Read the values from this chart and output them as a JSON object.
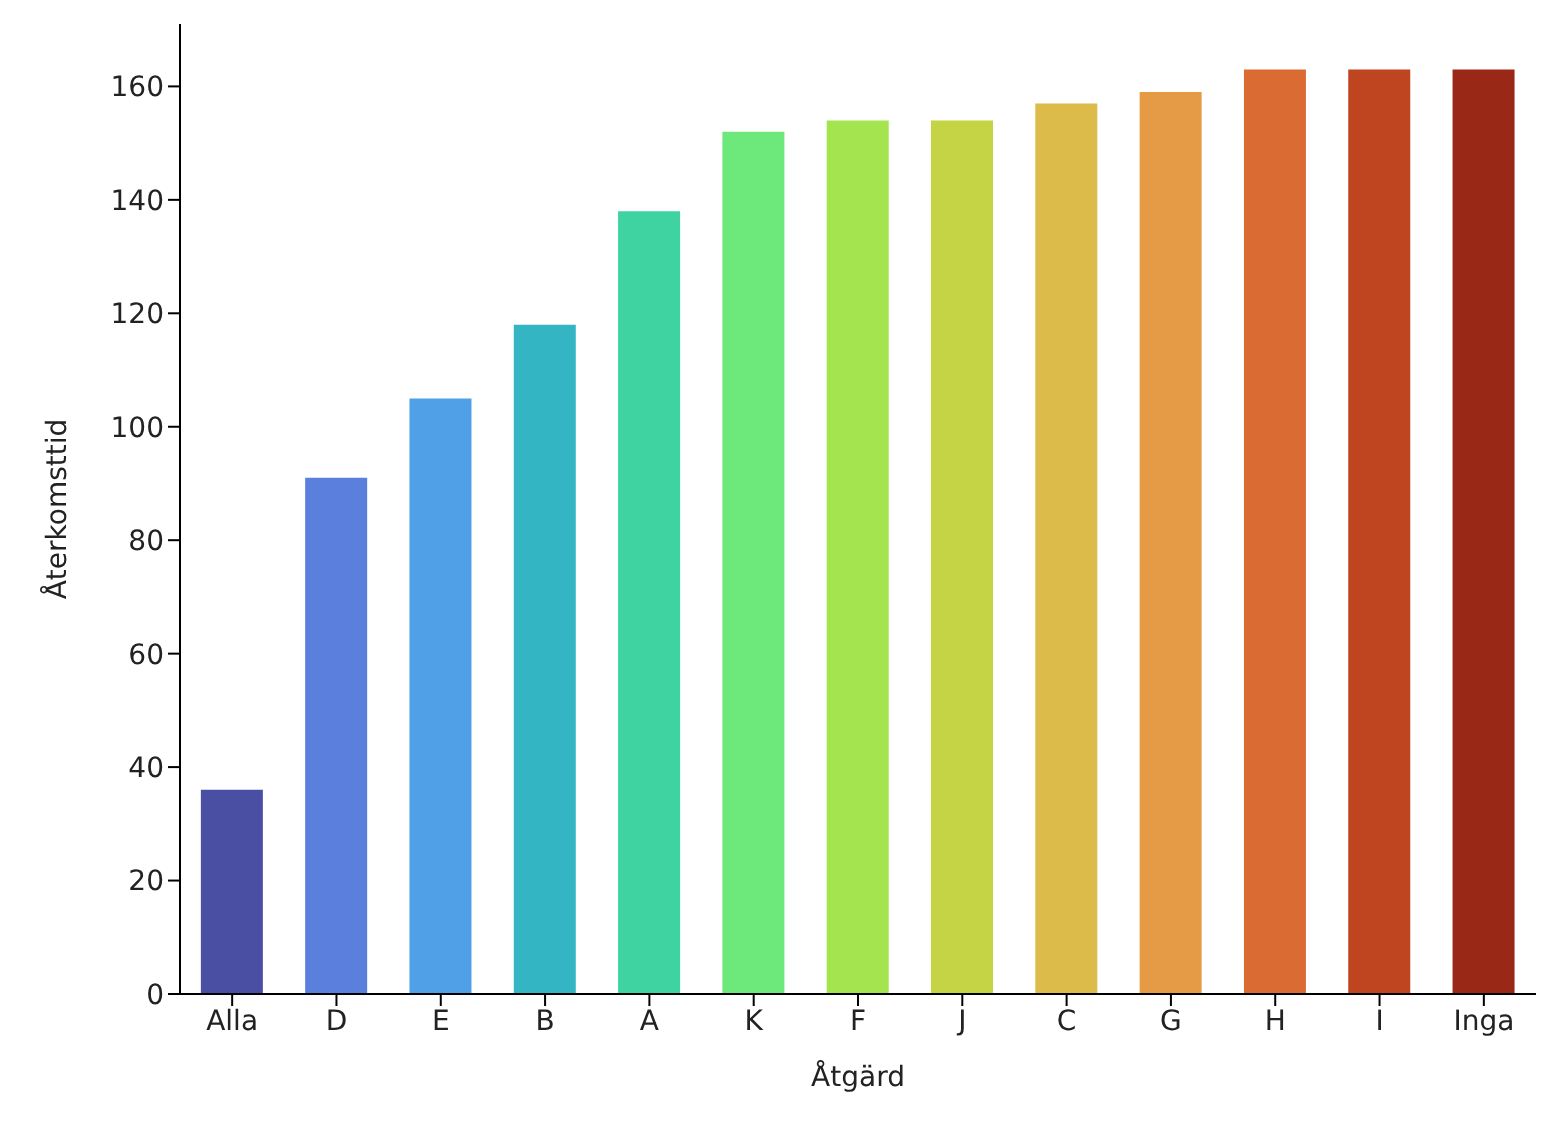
{
  "chart_data": {
    "type": "bar",
    "xlabel": "Åtgärd",
    "ylabel": "Återkomsttid",
    "categories": [
      "Alla",
      "D",
      "E",
      "B",
      "A",
      "K",
      "F",
      "J",
      "C",
      "G",
      "H",
      "I",
      "Inga"
    ],
    "values": [
      36,
      91,
      105,
      118,
      138,
      152,
      154,
      154,
      157,
      159,
      163,
      163,
      163
    ],
    "colors": [
      "#4a4fa3",
      "#5a7fdc",
      "#4fa0e6",
      "#33b5c4",
      "#3ed3a0",
      "#6de87a",
      "#a4e54f",
      "#c4d444",
      "#dcbb4b",
      "#e59a45",
      "#d96b33",
      "#bf4521",
      "#9a2817"
    ],
    "ylim": [
      0,
      171
    ],
    "yticks": [
      0,
      20,
      40,
      60,
      80,
      100,
      120,
      140,
      160
    ],
    "grid": false,
    "legend": false
  }
}
